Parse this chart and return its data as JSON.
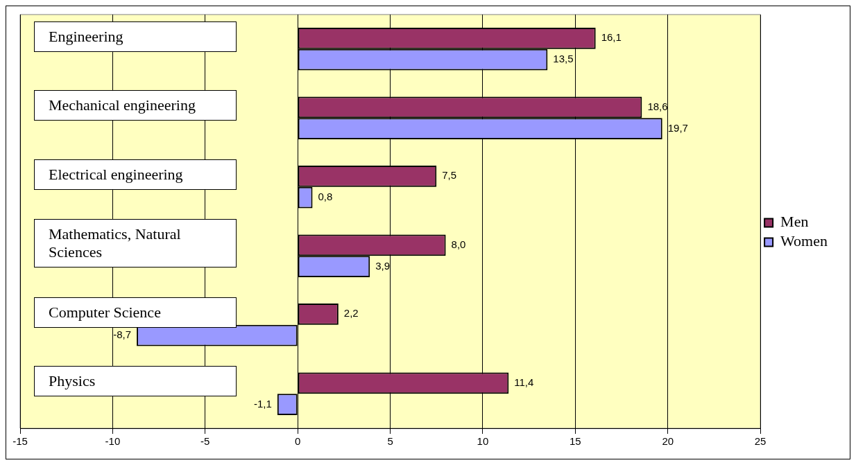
{
  "chart_data": {
    "type": "bar",
    "orientation": "horizontal",
    "categories": [
      "Engineering",
      "Mechanical engineering",
      "Electrical engineering",
      "Mathematics, Natural Sciences",
      "Computer Science",
      "Physics"
    ],
    "series": [
      {
        "name": "Men",
        "color": "#993366",
        "values": [
          16.1,
          18.6,
          7.5,
          8.0,
          2.2,
          11.4
        ],
        "value_labels": [
          "16,1",
          "18,6",
          "7,5",
          "8,0",
          "2,2",
          "11,4"
        ]
      },
      {
        "name": "Women",
        "color": "#9999ff",
        "values": [
          13.5,
          19.7,
          0.8,
          3.9,
          -8.7,
          -1.1
        ],
        "value_labels": [
          "13,5",
          "19,7",
          "0,8",
          "3,9",
          "-8,7",
          "-1,1"
        ]
      }
    ],
    "xlim": [
      -15,
      25
    ],
    "xticks": [
      -15,
      -10,
      -5,
      0,
      5,
      10,
      15,
      20,
      25
    ],
    "grid": "x",
    "legend": "right"
  }
}
